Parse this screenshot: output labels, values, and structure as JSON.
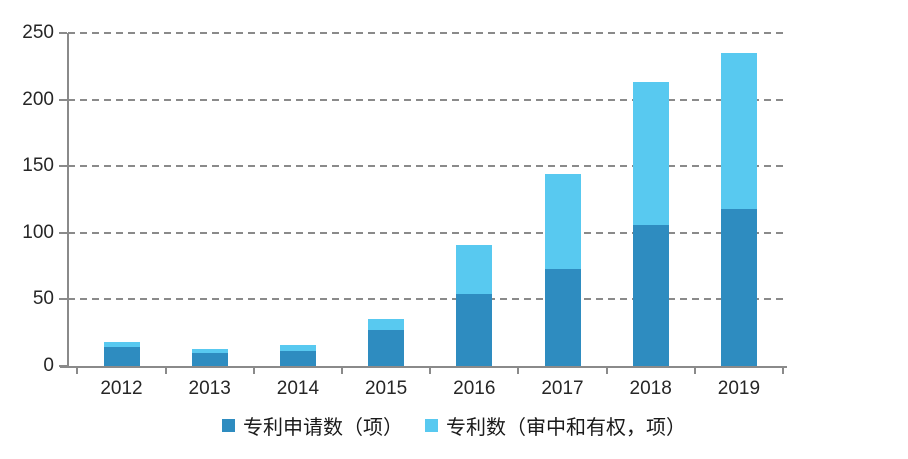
{
  "chart_data": {
    "type": "bar",
    "stacked": true,
    "title": "",
    "xlabel": "",
    "ylabel": "",
    "categories": [
      "2012",
      "2013",
      "2014",
      "2015",
      "2016",
      "2017",
      "2018",
      "2019"
    ],
    "series": [
      {
        "name": "专利申请数（项）",
        "color": "#2E8CC0",
        "values": [
          14,
          10,
          11,
          27,
          54,
          73,
          106,
          118
        ]
      },
      {
        "name": "专利数（审中和有权，项）",
        "color": "#58C9F0",
        "values": [
          4,
          3,
          5,
          8,
          37,
          71,
          107,
          117
        ]
      }
    ],
    "stacked_totals": [
      18,
      13,
      16,
      35,
      91,
      144,
      213,
      235
    ],
    "ylim": [
      0,
      250
    ],
    "yticks": [
      0,
      50,
      100,
      150,
      200,
      250
    ],
    "grid": "horizontal dashed",
    "grid_color": "#8a8a8a",
    "axis_color": "#8a8a8a",
    "legend_position": "bottom-center"
  }
}
